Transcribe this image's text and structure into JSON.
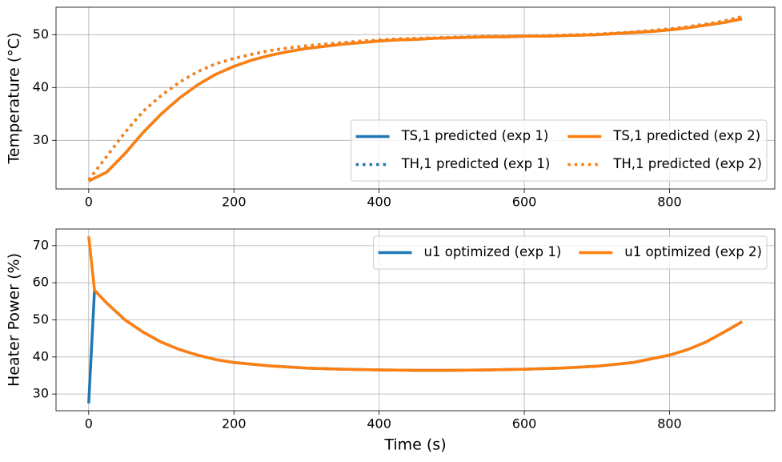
{
  "chart_data": [
    {
      "type": "line",
      "ylabel": "Temperature (°C)",
      "x": [
        0,
        25,
        50,
        75,
        100,
        125,
        150,
        175,
        200,
        225,
        250,
        275,
        300,
        325,
        350,
        375,
        400,
        425,
        450,
        475,
        500,
        525,
        550,
        575,
        600,
        625,
        650,
        675,
        700,
        725,
        750,
        775,
        800,
        825,
        850,
        875,
        900
      ],
      "series": [
        {
          "name": "TS,1 predicted (exp 1)",
          "color": "#1f77b4",
          "linestyle": "solid",
          "values": [
            22.3,
            24,
            27.5,
            31.5,
            35,
            38,
            40.5,
            42.5,
            44,
            45.2,
            46.1,
            46.8,
            47.4,
            47.8,
            48.2,
            48.5,
            48.8,
            49,
            49.1,
            49.3,
            49.4,
            49.5,
            49.6,
            49.6,
            49.7,
            49.7,
            49.8,
            49.9,
            50,
            50.2,
            50.4,
            50.6,
            50.9,
            51.3,
            51.8,
            52.3,
            53
          ]
        },
        {
          "name": "TH,1 predicted (exp 1)",
          "color": "#1f77b4",
          "linestyle": "dotted",
          "values": [
            22.5,
            27,
            31.5,
            35.5,
            38.5,
            41,
            43,
            44.5,
            45.5,
            46.3,
            47,
            47.5,
            47.9,
            48.2,
            48.5,
            48.8,
            49,
            49.2,
            49.3,
            49.4,
            49.5,
            49.6,
            49.7,
            49.7,
            49.8,
            49.8,
            49.9,
            50,
            50.1,
            50.3,
            50.5,
            50.8,
            51.1,
            51.5,
            52,
            52.6,
            53.4
          ]
        },
        {
          "name": "TS,1 predicted (exp 2)",
          "color": "#ff7f0e",
          "linestyle": "solid",
          "values": [
            22.3,
            24,
            27.5,
            31.5,
            35,
            38,
            40.5,
            42.5,
            44,
            45.2,
            46.1,
            46.8,
            47.4,
            47.8,
            48.2,
            48.5,
            48.8,
            49,
            49.1,
            49.3,
            49.4,
            49.5,
            49.6,
            49.6,
            49.7,
            49.7,
            49.8,
            49.9,
            50,
            50.2,
            50.4,
            50.6,
            50.9,
            51.3,
            51.8,
            52.3,
            53
          ]
        },
        {
          "name": "TH,1 predicted (exp 2)",
          "color": "#ff7f0e",
          "linestyle": "dotted",
          "values": [
            22.5,
            27,
            31.5,
            35.5,
            38.5,
            41,
            43,
            44.5,
            45.5,
            46.3,
            47,
            47.5,
            47.9,
            48.2,
            48.5,
            48.8,
            49,
            49.2,
            49.3,
            49.4,
            49.5,
            49.6,
            49.7,
            49.7,
            49.8,
            49.8,
            49.9,
            50,
            50.1,
            50.3,
            50.5,
            50.8,
            51.1,
            51.5,
            52,
            52.6,
            53.4
          ]
        }
      ],
      "xlim": [
        -45,
        945
      ],
      "ylim": [
        20.8,
        55.2
      ],
      "xticks": [
        0,
        200,
        400,
        600,
        800
      ],
      "yticks": [
        30,
        40,
        50
      ],
      "grid": true,
      "legend": "lower right",
      "legend_columns": 2
    },
    {
      "type": "line",
      "xlabel": "Time (s)",
      "ylabel": "Heater Power (%)",
      "x": [
        0,
        8,
        25,
        50,
        75,
        100,
        125,
        150,
        175,
        200,
        250,
        300,
        350,
        400,
        450,
        500,
        550,
        600,
        650,
        700,
        750,
        800,
        825,
        850,
        875,
        900
      ],
      "series": [
        {
          "name": "u1 optimized (exp 1)",
          "color": "#1f77b4",
          "linestyle": "solid",
          "values": [
            27.5,
            58,
            54.5,
            50,
            46.7,
            44,
            42,
            40.5,
            39.3,
            38.5,
            37.6,
            37,
            36.7,
            36.5,
            36.4,
            36.4,
            36.5,
            36.7,
            37,
            37.5,
            38.5,
            40.5,
            42,
            44,
            46.7,
            49.5
          ]
        },
        {
          "name": "u1 optimized (exp 2)",
          "color": "#ff7f0e",
          "linestyle": "solid",
          "values": [
            72.5,
            58,
            54.5,
            50,
            46.7,
            44,
            42,
            40.5,
            39.3,
            38.5,
            37.6,
            37,
            36.7,
            36.5,
            36.4,
            36.4,
            36.5,
            36.7,
            37,
            37.5,
            38.5,
            40.5,
            42,
            44,
            46.7,
            49.5
          ]
        }
      ],
      "xlim": [
        -45,
        945
      ],
      "ylim": [
        25.5,
        74.5
      ],
      "xticks": [
        0,
        200,
        400,
        600,
        800
      ],
      "yticks": [
        30,
        40,
        50,
        60,
        70
      ],
      "grid": true,
      "legend": "upper right",
      "legend_columns": 2
    }
  ]
}
